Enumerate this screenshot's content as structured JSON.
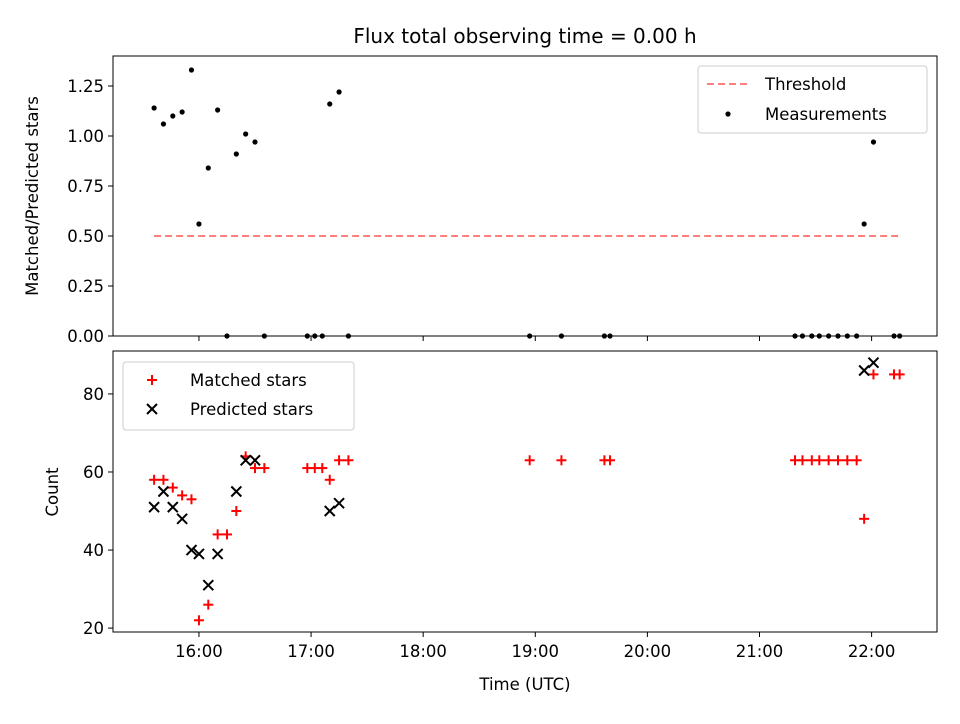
{
  "figure": {
    "title": "Flux total observing time = 0.00 h"
  },
  "colors": {
    "threshold": "#ff7f7f",
    "measurement": "#000000",
    "matched": "#ff0000",
    "predicted": "#000000"
  },
  "chart_data": [
    {
      "type": "scatter",
      "title": "Flux total observing time = 0.00 h",
      "xlabel": "",
      "ylabel": "Matched/Predicted stars",
      "xlim": [
        "15:14",
        "22:35"
      ],
      "ylim": [
        0,
        1.4
      ],
      "yticks": [
        "0.00",
        "0.25",
        "0.50",
        "0.75",
        "1.00",
        "1.25"
      ],
      "legend_position": "top-right",
      "legend": [
        "Threshold",
        "Measurements"
      ],
      "threshold": {
        "name": "Threshold",
        "y": 0.5,
        "x_start": "15:36",
        "x_end": "22:16",
        "style": "dashed"
      },
      "series": [
        {
          "name": "Measurements",
          "points": [
            [
              "15:36",
              1.14
            ],
            [
              "15:41",
              1.06
            ],
            [
              "15:46",
              1.1
            ],
            [
              "15:51",
              1.12
            ],
            [
              "15:56",
              1.33
            ],
            [
              "16:00",
              0.56
            ],
            [
              "16:05",
              0.84
            ],
            [
              "16:10",
              1.13
            ],
            [
              "16:15",
              0.0
            ],
            [
              "16:20",
              0.91
            ],
            [
              "16:25",
              1.01
            ],
            [
              "16:30",
              0.97
            ],
            [
              "16:35",
              0.0
            ],
            [
              "16:58",
              0.0
            ],
            [
              "17:02",
              0.0
            ],
            [
              "17:06",
              0.0
            ],
            [
              "17:10",
              1.16
            ],
            [
              "17:15",
              1.22
            ],
            [
              "17:20",
              0.0
            ],
            [
              "18:57",
              0.0
            ],
            [
              "19:14",
              0.0
            ],
            [
              "19:37",
              0.0
            ],
            [
              "19:40",
              0.0
            ],
            [
              "21:19",
              0.0
            ],
            [
              "21:23",
              0.0
            ],
            [
              "21:28",
              0.0
            ],
            [
              "21:32",
              0.0
            ],
            [
              "21:37",
              0.0
            ],
            [
              "21:42",
              0.0
            ],
            [
              "21:47",
              0.0
            ],
            [
              "21:52",
              0.0
            ],
            [
              "21:56",
              0.56
            ],
            [
              "22:01",
              0.97
            ],
            [
              "22:12",
              0.0
            ],
            [
              "22:15",
              0.0
            ]
          ]
        }
      ]
    },
    {
      "type": "scatter",
      "title": "",
      "xlabel": "Time (UTC)",
      "ylabel": "Count",
      "xlim": [
        "15:14",
        "22:35"
      ],
      "ylim": [
        19,
        91
      ],
      "yticks": [
        "20",
        "40",
        "60",
        "80"
      ],
      "xticks": [
        "16:00",
        "17:00",
        "18:00",
        "19:00",
        "20:00",
        "21:00",
        "22:00"
      ],
      "legend_position": "top-left",
      "legend": [
        "Matched stars",
        "Predicted stars"
      ],
      "series": [
        {
          "name": "Matched stars",
          "marker": "plus",
          "points": [
            [
              "15:36",
              58
            ],
            [
              "15:41",
              58
            ],
            [
              "15:46",
              56
            ],
            [
              "15:51",
              54
            ],
            [
              "15:56",
              53
            ],
            [
              "16:00",
              22
            ],
            [
              "16:05",
              26
            ],
            [
              "16:10",
              44
            ],
            [
              "16:15",
              44
            ],
            [
              "16:20",
              50
            ],
            [
              "16:25",
              64
            ],
            [
              "16:30",
              61
            ],
            [
              "16:35",
              61
            ],
            [
              "16:58",
              61
            ],
            [
              "17:02",
              61
            ],
            [
              "17:06",
              61
            ],
            [
              "17:10",
              58
            ],
            [
              "17:15",
              63
            ],
            [
              "17:20",
              63
            ],
            [
              "18:57",
              63
            ],
            [
              "19:14",
              63
            ],
            [
              "19:37",
              63
            ],
            [
              "19:40",
              63
            ],
            [
              "21:19",
              63
            ],
            [
              "21:23",
              63
            ],
            [
              "21:28",
              63
            ],
            [
              "21:32",
              63
            ],
            [
              "21:37",
              63
            ],
            [
              "21:42",
              63
            ],
            [
              "21:47",
              63
            ],
            [
              "21:52",
              63
            ],
            [
              "21:56",
              48
            ],
            [
              "22:01",
              85
            ],
            [
              "22:12",
              85
            ],
            [
              "22:15",
              85
            ]
          ]
        },
        {
          "name": "Predicted stars",
          "marker": "x",
          "points": [
            [
              "15:36",
              51
            ],
            [
              "15:41",
              55
            ],
            [
              "15:46",
              51
            ],
            [
              "15:51",
              48
            ],
            [
              "15:56",
              40
            ],
            [
              "16:00",
              39
            ],
            [
              "16:05",
              31
            ],
            [
              "16:10",
              39
            ],
            [
              "16:20",
              55
            ],
            [
              "16:25",
              63
            ],
            [
              "16:30",
              63
            ],
            [
              "17:10",
              50
            ],
            [
              "17:15",
              52
            ],
            [
              "21:56",
              86
            ],
            [
              "22:01",
              88
            ]
          ]
        }
      ]
    }
  ]
}
